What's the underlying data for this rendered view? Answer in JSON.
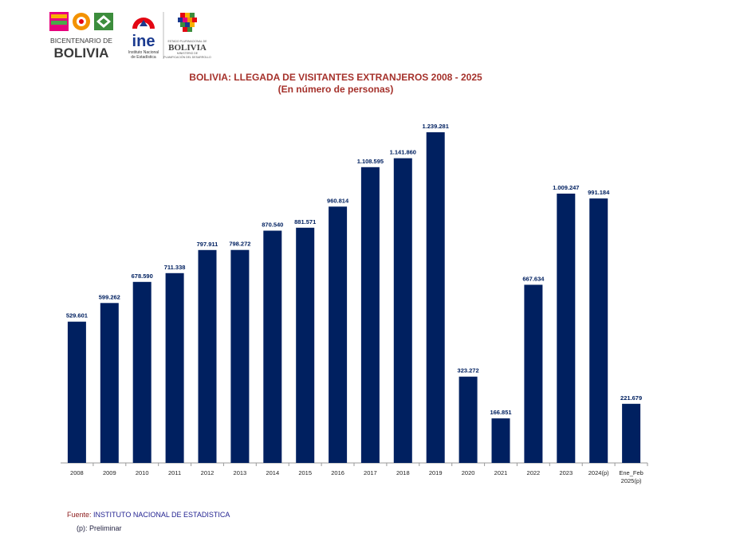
{
  "header": {
    "logo_bicentenario_line1": "BICENTENARIO DE",
    "logo_bicentenario_line2": "BOLIVIA",
    "logo_ine": "ine",
    "logo_ine_sub1": "Instituto Nacional",
    "logo_ine_sub2": "de Estadística",
    "logo_estado_sub1": "ESTADO PLURINACIONAL DE",
    "logo_estado_main": "BOLIVIA",
    "logo_estado_sub2": "MINISTERIO DE",
    "logo_estado_sub3": "PLANIFICACIÓN DEL DESARROLLO"
  },
  "chart_data": {
    "type": "bar",
    "title": "BOLIVIA: LLEGADA DE VISITANTES EXTRANJEROS 2008 - 2025",
    "subtitle": "(En número de personas)",
    "categories": [
      "2008",
      "2009",
      "2010",
      "2011",
      "2012",
      "2013",
      "2014",
      "2015",
      "2016",
      "2017",
      "2018",
      "2019",
      "2020",
      "2021",
      "2022",
      "2023",
      "2024(p)",
      "Ene_Feb 2025(p)"
    ],
    "values": [
      529601,
      599262,
      678590,
      711338,
      797911,
      798272,
      870540,
      881571,
      960814,
      1108595,
      1141860,
      1239281,
      323272,
      166851,
      667634,
      1009247,
      991184,
      221679
    ],
    "value_labels": [
      "529.601",
      "599.262",
      "678.590",
      "711.338",
      "797.911",
      "798.272",
      "870.540",
      "881.571",
      "960.814",
      "1.108.595",
      "1.141.860",
      "1.239.281",
      "323.272",
      "166.851",
      "667.634",
      "1.009.247",
      "991.184",
      "221.679"
    ],
    "ylim": [
      0,
      1239281
    ],
    "grid": false,
    "legend": "none",
    "bar_color": "#002060",
    "label_color": "#002060"
  },
  "footer": {
    "source_label": "Fuente: ",
    "source_value": "INSTITUTO NACIONAL DE ESTADISTICA",
    "note": "(p): Preliminar"
  }
}
